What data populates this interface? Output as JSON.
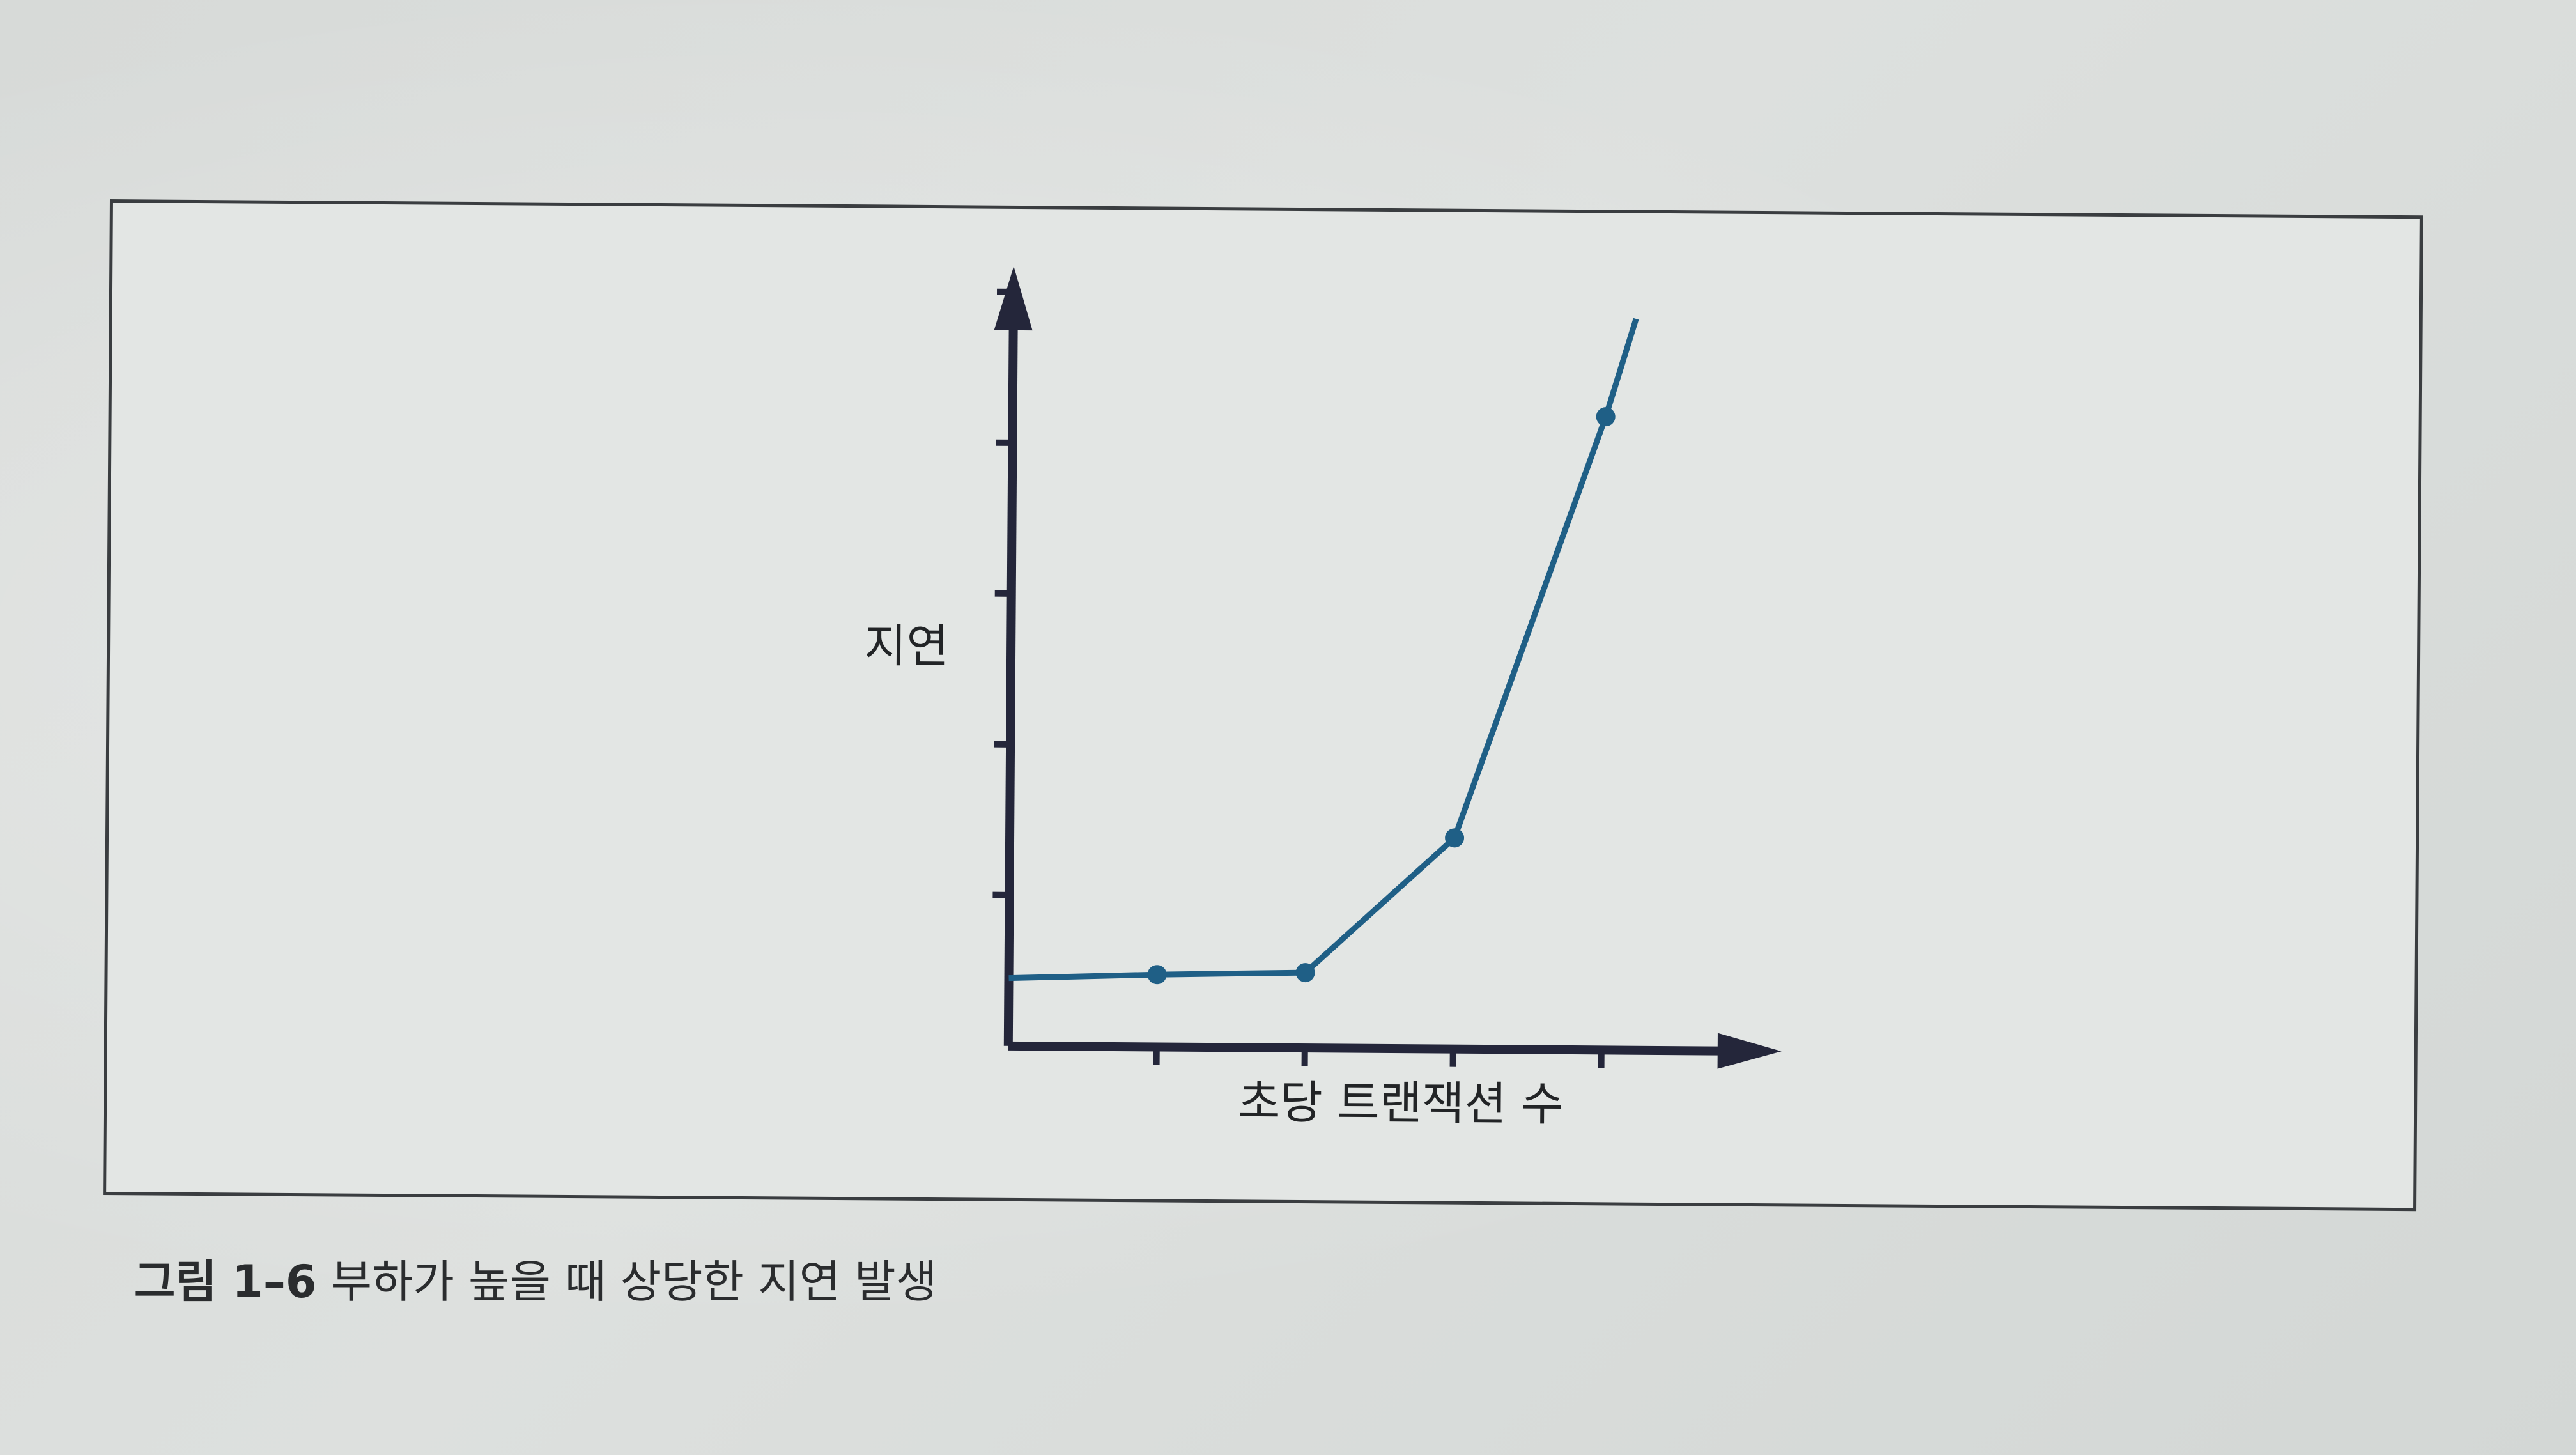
{
  "caption": {
    "number": "그림 1–6",
    "text": "부하가 높을 때 상당한 지연 발생"
  },
  "chart_data": {
    "type": "line",
    "title": "",
    "xlabel": "초당 트랜잭션 수",
    "ylabel": "지연",
    "x_ticks": [
      1,
      2,
      3,
      4
    ],
    "y_ticks": [
      1,
      2,
      3,
      4,
      5
    ],
    "xlim": [
      0,
      5
    ],
    "ylim": [
      0,
      6
    ],
    "grid": false,
    "series": [
      {
        "x": [
          0,
          1,
          2,
          3,
          4,
          4.2
        ],
        "y": [
          0.45,
          0.48,
          0.5,
          1.4,
          4.2,
          4.85
        ]
      }
    ],
    "markers": [
      {
        "x": 1,
        "y": 0.48
      },
      {
        "x": 2,
        "y": 0.5
      },
      {
        "x": 3,
        "y": 1.4
      },
      {
        "x": 4,
        "y": 4.2
      }
    ],
    "colors": {
      "line": "#1f5f86",
      "axis": "#24263a"
    }
  }
}
